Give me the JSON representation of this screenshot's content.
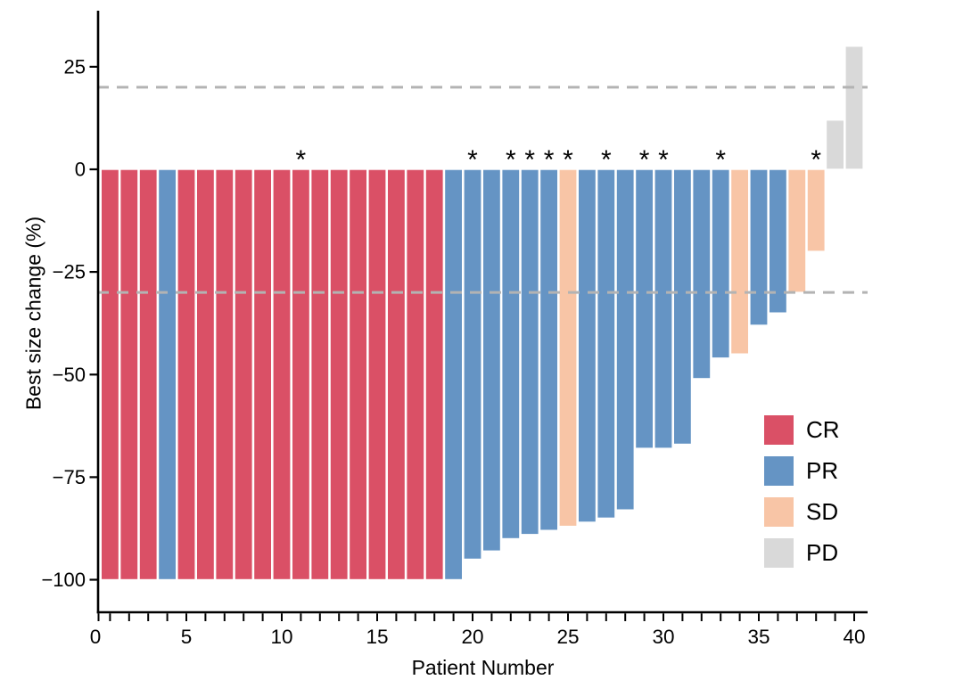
{
  "chart_data": {
    "type": "bar",
    "subtype": "waterfall-tumor-response",
    "title": "",
    "xlabel": "Patient Number",
    "ylabel": "Best size change (%)",
    "xlim": [
      0,
      41
    ],
    "ylim": [
      -108,
      39
    ],
    "x_tick_labels": [
      0,
      5,
      10,
      15,
      20,
      25,
      30,
      35,
      40
    ],
    "x_minor_tick_every": 1,
    "y_ticks": [
      25,
      0,
      -25,
      -50,
      -75,
      -100
    ],
    "reference_lines": [
      20,
      -30
    ],
    "grid": false,
    "legend_position": "inside-right",
    "annotation_symbol": "*",
    "groups": [
      {
        "id": "CR",
        "label": "CR",
        "color": "#DA5066"
      },
      {
        "id": "PR",
        "label": "PR",
        "color": "#6594C4"
      },
      {
        "id": "SD",
        "label": "SD",
        "color": "#F8C5A6"
      },
      {
        "id": "PD",
        "label": "PD",
        "color": "#D9D9D9"
      }
    ],
    "patients": [
      {
        "patient": 1,
        "value": -100,
        "group": "CR",
        "asterisk": false
      },
      {
        "patient": 2,
        "value": -100,
        "group": "CR",
        "asterisk": false
      },
      {
        "patient": 3,
        "value": -100,
        "group": "CR",
        "asterisk": false
      },
      {
        "patient": 4,
        "value": -100,
        "group": "PR",
        "asterisk": false
      },
      {
        "patient": 5,
        "value": -100,
        "group": "CR",
        "asterisk": false
      },
      {
        "patient": 6,
        "value": -100,
        "group": "CR",
        "asterisk": false
      },
      {
        "patient": 7,
        "value": -100,
        "group": "CR",
        "asterisk": false
      },
      {
        "patient": 8,
        "value": -100,
        "group": "CR",
        "asterisk": false
      },
      {
        "patient": 9,
        "value": -100,
        "group": "CR",
        "asterisk": false
      },
      {
        "patient": 10,
        "value": -100,
        "group": "CR",
        "asterisk": false
      },
      {
        "patient": 11,
        "value": -100,
        "group": "CR",
        "asterisk": true
      },
      {
        "patient": 12,
        "value": -100,
        "group": "CR",
        "asterisk": false
      },
      {
        "patient": 13,
        "value": -100,
        "group": "CR",
        "asterisk": false
      },
      {
        "patient": 14,
        "value": -100,
        "group": "CR",
        "asterisk": false
      },
      {
        "patient": 15,
        "value": -100,
        "group": "CR",
        "asterisk": false
      },
      {
        "patient": 16,
        "value": -100,
        "group": "CR",
        "asterisk": false
      },
      {
        "patient": 17,
        "value": -100,
        "group": "CR",
        "asterisk": false
      },
      {
        "patient": 18,
        "value": -100,
        "group": "CR",
        "asterisk": false
      },
      {
        "patient": 19,
        "value": -100,
        "group": "PR",
        "asterisk": false
      },
      {
        "patient": 20,
        "value": -95,
        "group": "PR",
        "asterisk": true
      },
      {
        "patient": 21,
        "value": -93,
        "group": "PR",
        "asterisk": false
      },
      {
        "patient": 22,
        "value": -90,
        "group": "PR",
        "asterisk": true
      },
      {
        "patient": 23,
        "value": -89,
        "group": "PR",
        "asterisk": true
      },
      {
        "patient": 24,
        "value": -88,
        "group": "PR",
        "asterisk": true
      },
      {
        "patient": 25,
        "value": -87,
        "group": "SD",
        "asterisk": true
      },
      {
        "patient": 26,
        "value": -86,
        "group": "PR",
        "asterisk": false
      },
      {
        "patient": 27,
        "value": -85,
        "group": "PR",
        "asterisk": true
      },
      {
        "patient": 28,
        "value": -83,
        "group": "PR",
        "asterisk": false
      },
      {
        "patient": 29,
        "value": -68,
        "group": "PR",
        "asterisk": true
      },
      {
        "patient": 30,
        "value": -68,
        "group": "PR",
        "asterisk": true
      },
      {
        "patient": 31,
        "value": -67,
        "group": "PR",
        "asterisk": false
      },
      {
        "patient": 32,
        "value": -51,
        "group": "PR",
        "asterisk": false
      },
      {
        "patient": 33,
        "value": -46,
        "group": "PR",
        "asterisk": true
      },
      {
        "patient": 34,
        "value": -45,
        "group": "SD",
        "asterisk": false
      },
      {
        "patient": 35,
        "value": -38,
        "group": "PR",
        "asterisk": false
      },
      {
        "patient": 36,
        "value": -35,
        "group": "PR",
        "asterisk": false
      },
      {
        "patient": 37,
        "value": -30,
        "group": "SD",
        "asterisk": false
      },
      {
        "patient": 38,
        "value": -20,
        "group": "SD",
        "asterisk": true
      },
      {
        "patient": 39,
        "value": 12,
        "group": "PD",
        "asterisk": false
      },
      {
        "patient": 40,
        "value": 30,
        "group": "PD",
        "asterisk": false
      }
    ]
  },
  "colors": {
    "axis": "#000000",
    "text": "#000000",
    "reference_line": "#B3B3B3",
    "bar_outline": "#FFFFFF",
    "background": "#FFFFFF"
  }
}
